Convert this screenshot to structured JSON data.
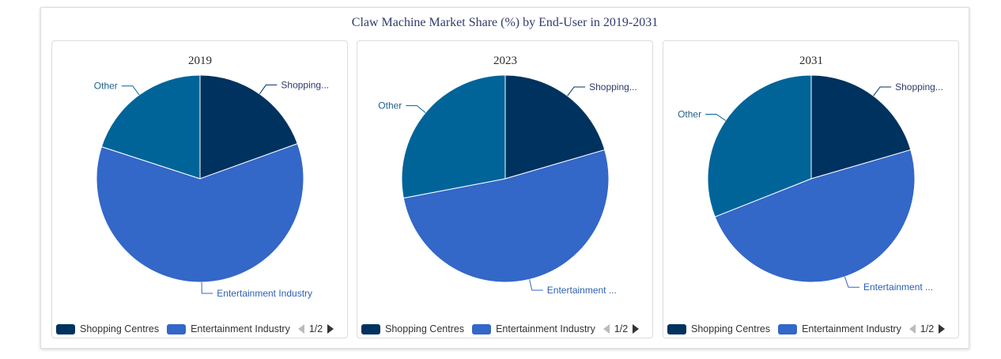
{
  "chart_title": "Claw Machine Market Share (%) by End-User in 2019-2031",
  "colors": {
    "shopping_centres": "#00325f",
    "entertainment_industry": "#3367c8",
    "other": "#006499"
  },
  "legend": {
    "items": [
      "Shopping Centres",
      "Entertainment Industry"
    ],
    "page": "1/2"
  },
  "chart_data": [
    {
      "type": "pie",
      "title": "2019",
      "categories": [
        "Shopping Centres",
        "Entertainment Industry",
        "Other"
      ],
      "display_labels": [
        "Shopping...",
        "Entertainment Industry",
        "Other"
      ],
      "values": [
        19.5,
        60.5,
        20.0
      ]
    },
    {
      "type": "pie",
      "title": "2023",
      "categories": [
        "Shopping Centres",
        "Entertainment Industry",
        "Other"
      ],
      "display_labels": [
        "Shopping...",
        "Entertainment ...",
        "Other"
      ],
      "values": [
        20.5,
        51.5,
        28.0
      ]
    },
    {
      "type": "pie",
      "title": "2031",
      "categories": [
        "Shopping Centres",
        "Entertainment Industry",
        "Other"
      ],
      "display_labels": [
        "Shopping...",
        "Entertainment ...",
        "Other"
      ],
      "values": [
        20.5,
        48.5,
        31.0
      ]
    }
  ]
}
